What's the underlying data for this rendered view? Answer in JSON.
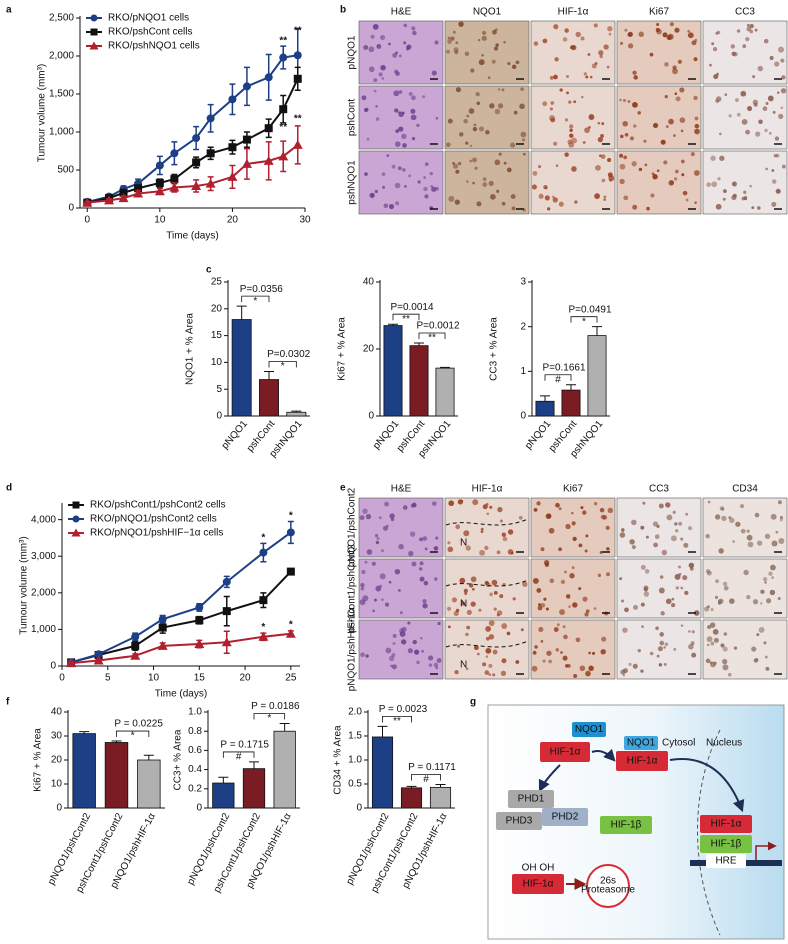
{
  "panel_labels": [
    "a",
    "b",
    "c",
    "d",
    "e",
    "f",
    "g"
  ],
  "chart_data": [
    {
      "type": "line",
      "xlabel": "Time (days)",
      "ylabel": "Tumour volume (mm³)",
      "x": [
        0,
        3,
        5,
        7,
        10,
        12,
        15,
        17,
        20,
        22,
        25,
        27,
        29
      ],
      "xlim": [
        -1,
        30
      ],
      "xticks": [
        0,
        10,
        20,
        30
      ],
      "ylim": [
        0,
        2500
      ],
      "yticks": [
        0,
        500,
        {
          "value": 1000,
          "label": "1,000"
        },
        {
          "value": 1500,
          "label": "1,500"
        },
        {
          "value": 2000,
          "label": "2,000"
        },
        {
          "value": 2500,
          "label": "2,500"
        }
      ],
      "legend": "upper left",
      "series": [
        {
          "name": "RKO/pNQO1 cells",
          "color": "#1c3f86",
          "marker": "circle",
          "values": [
            80,
            150,
            250,
            320,
            560,
            720,
            920,
            1180,
            1430,
            1600,
            1720,
            1980,
            2010
          ],
          "errors": [
            20,
            30,
            40,
            60,
            120,
            150,
            150,
            180,
            200,
            250,
            300,
            150,
            350
          ]
        },
        {
          "name": "RKO/pshCont cells",
          "color": "#111111",
          "marker": "square",
          "values": [
            70,
            130,
            200,
            260,
            330,
            380,
            600,
            720,
            800,
            900,
            1050,
            1300,
            1700
          ],
          "errors": [
            15,
            20,
            30,
            40,
            50,
            60,
            70,
            80,
            90,
            100,
            120,
            180,
            150
          ]
        },
        {
          "name": "RKO/pshNQO1 cells",
          "color": "#b22030",
          "marker": "triangle",
          "values": [
            70,
            100,
            130,
            190,
            220,
            270,
            290,
            320,
            410,
            580,
            620,
            680,
            830
          ],
          "errors": [
            15,
            20,
            30,
            40,
            40,
            60,
            80,
            90,
            150,
            200,
            250,
            200,
            250
          ]
        }
      ],
      "annotations": [
        {
          "text": "**",
          "x": 27,
          "y": 2200
        },
        {
          "text": "**",
          "x": 29,
          "y": 2330
        },
        {
          "text": "**",
          "x": 27,
          "y": 1060
        },
        {
          "text": "**",
          "x": 29,
          "y": 1170
        }
      ]
    },
    {
      "type": "bar",
      "ylabel": "NQO1 + % Area",
      "categories": [
        "pNQO1",
        "pshCont",
        "pshNQO1"
      ],
      "values": [
        18,
        6.8,
        0.7
      ],
      "errors": [
        2.5,
        1.5,
        0.2
      ],
      "colors": [
        "#1c3f86",
        "#7a1c24",
        "#b0b0b0"
      ],
      "ylim": [
        0,
        25
      ],
      "yticks": [
        0,
        5,
        10,
        15,
        20,
        25
      ],
      "brackets": [
        {
          "p": "P=0.0356",
          "sig": "*"
        },
        {
          "p": "P=0.0302",
          "sig": "*"
        }
      ]
    },
    {
      "type": "bar",
      "ylabel": "Ki67 + % Area",
      "categories": [
        "pNQO1",
        "pshCont",
        "pshNQO1"
      ],
      "values": [
        27,
        21,
        14.3
      ],
      "errors": [
        0.4,
        0.8,
        0.2
      ],
      "colors": [
        "#1c3f86",
        "#7a1c24",
        "#b0b0b0"
      ],
      "ylim": [
        0,
        40
      ],
      "yticks": [
        0,
        20,
        40
      ],
      "brackets": [
        {
          "p": "P=0.0014",
          "sig": "**"
        },
        {
          "p": "P=0.0012",
          "sig": "**"
        }
      ]
    },
    {
      "type": "bar",
      "ylabel": "CC3 + % Area",
      "categories": [
        "pNQO1",
        "pshCont",
        "pshNQO1"
      ],
      "values": [
        0.33,
        0.58,
        1.8
      ],
      "errors": [
        0.12,
        0.12,
        0.2
      ],
      "colors": [
        "#1c3f86",
        "#7a1c24",
        "#b0b0b0"
      ],
      "ylim": [
        0,
        3
      ],
      "yticks": [
        0,
        1,
        2,
        3
      ],
      "brackets": [
        {
          "p": "P=0.1661",
          "sig": "#"
        },
        {
          "p": "P=0.0491",
          "sig": "*"
        }
      ]
    },
    {
      "type": "line",
      "xlabel": "Time (days)",
      "ylabel": "Tumour volume (mm³)",
      "x": [
        1,
        4,
        8,
        11,
        15,
        18,
        22,
        25
      ],
      "xlim": [
        0,
        26
      ],
      "xticks": [
        0,
        5,
        10,
        15,
        20,
        25
      ],
      "ylim": [
        0,
        4400
      ],
      "yticks": [
        0,
        {
          "value": 1000,
          "label": "1,000"
        },
        {
          "value": 2000,
          "label": "2,000"
        },
        {
          "value": 3000,
          "label": "3,000"
        },
        {
          "value": 4000,
          "label": "4,000"
        }
      ],
      "legend": "upper left",
      "series": [
        {
          "name": "RKO/pshCont1/pshCont2 cells",
          "color": "#111111",
          "marker": "square",
          "values": [
            100,
            300,
            550,
            1050,
            1250,
            1500,
            1800,
            2580
          ],
          "errors": [
            50,
            50,
            120,
            150,
            100,
            400,
            200,
            0
          ]
        },
        {
          "name": "RKO/pNQO1/pshCont2 cells",
          "color": "#1c3f86",
          "marker": "circle",
          "values": [
            100,
            320,
            800,
            1280,
            1600,
            2300,
            3100,
            3650
          ],
          "errors": [
            30,
            50,
            100,
            100,
            100,
            150,
            250,
            300
          ]
        },
        {
          "name": "RKO/pNQO1/pshHIF−1α cells",
          "color": "#b22030",
          "marker": "triangle",
          "values": [
            80,
            150,
            280,
            550,
            600,
            650,
            800,
            880
          ],
          "errors": [
            30,
            30,
            50,
            80,
            100,
            300,
            100,
            80
          ]
        }
      ],
      "annotations": [
        {
          "text": "*",
          "x": 22,
          "y": 3500
        },
        {
          "text": "*",
          "x": 25,
          "y": 4100
        },
        {
          "text": "*",
          "x": 22,
          "y": 1050
        },
        {
          "text": "*",
          "x": 25,
          "y": 1120
        }
      ]
    },
    {
      "type": "bar",
      "ylabel": "Ki67 + % Area",
      "categories": [
        "pNQO1/pshCont2",
        "pshCont1/pshCont2",
        "pNQO1/pshHIF-1α"
      ],
      "values": [
        31,
        27.3,
        20
      ],
      "errors": [
        0.8,
        0.6,
        2
      ],
      "colors": [
        "#1c3f86",
        "#7a1c24",
        "#b0b0b0"
      ],
      "ylim": [
        0,
        40
      ],
      "yticks": [
        0,
        10,
        20,
        30,
        40
      ],
      "brackets": [
        null,
        {
          "p": "P = 0.0225",
          "sig": "*"
        }
      ]
    },
    {
      "type": "bar",
      "ylabel": "CC3+ % Area",
      "categories": [
        "pNQO1/pshCont2",
        "pshCont1/pshCont2",
        "pNQO1/pshHIF-1α"
      ],
      "values": [
        0.26,
        0.41,
        0.8
      ],
      "errors": [
        0.06,
        0.07,
        0.08
      ],
      "colors": [
        "#1c3f86",
        "#7a1c24",
        "#b0b0b0"
      ],
      "ylim": [
        0,
        1
      ],
      "yticks": [
        0,
        0.2,
        0.4,
        0.6,
        0.8,
        {
          "value": 1,
          "label": "1.0"
        }
      ],
      "brackets": [
        {
          "p": "P = 0.1715",
          "sig": "#"
        },
        {
          "p": "P = 0.0186",
          "sig": "*"
        }
      ]
    },
    {
      "type": "bar",
      "ylabel": "CD34 + % Area",
      "categories": [
        "pNQO1/pshCont2",
        "pshCont1/pshCont2",
        "pNQO1/pshHIF-1α"
      ],
      "values": [
        1.48,
        0.42,
        0.43
      ],
      "errors": [
        0.22,
        0.03,
        0.06
      ],
      "colors": [
        "#1c3f86",
        "#7a1c24",
        "#b0b0b0"
      ],
      "ylim": [
        0,
        2
      ],
      "yticks": [
        0,
        0.5,
        {
          "value": 1,
          "label": "1.0"
        },
        1.5,
        {
          "value": 2,
          "label": "2.0"
        }
      ],
      "brackets": [
        {
          "p": "P = 0.0023",
          "sig": "**"
        },
        {
          "p": "P = 0.1171",
          "sig": "#"
        }
      ]
    }
  ],
  "micrographs_b": {
    "columns": [
      "H&E",
      "NQO1",
      "HIF-1α",
      "Ki67",
      "CC3"
    ],
    "rows": [
      "pNQO1",
      "pshCont",
      "pshNQO1"
    ]
  },
  "micrographs_e": {
    "columns": [
      "H&E",
      "HIF-1α",
      "Ki67",
      "CC3",
      "CD34"
    ],
    "rows": [
      "pNQO1/pshCont2",
      "pshCont1/pshCont2",
      "pNQO1/pshHIF-1α"
    ],
    "necrosis": "N"
  },
  "diagram": {
    "nqo1": "NQO1",
    "hif1a": "HIF-1α",
    "cytosol": "Cytosol",
    "nucleus": "Nucleus",
    "phd1": "PHD1",
    "phd2": "PHD2",
    "phd3": "PHD3",
    "hif1b": "HIF-1β",
    "oh": "OH OH",
    "proteasome": [
      "26s",
      "Proteasome"
    ],
    "hre": "HRE"
  }
}
